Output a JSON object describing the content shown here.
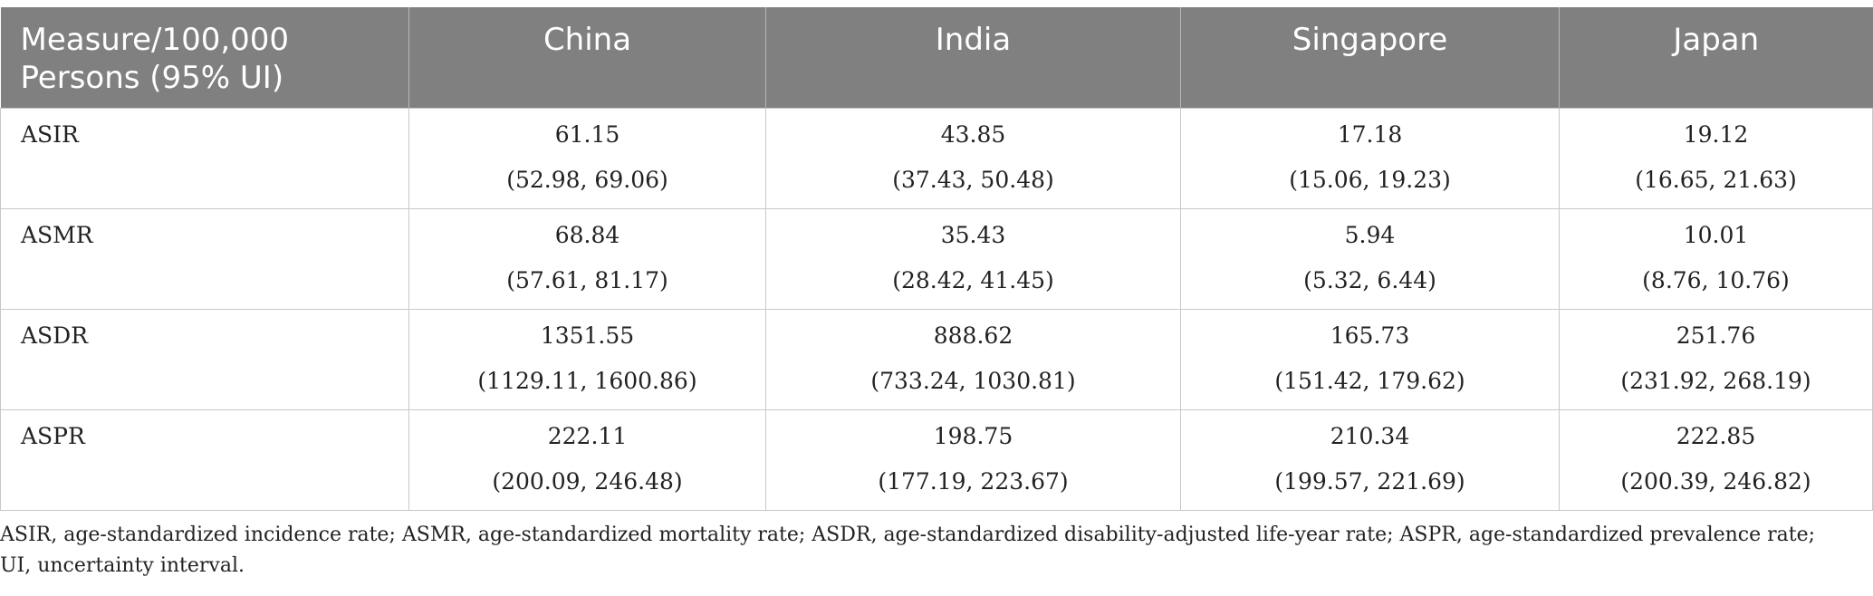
{
  "table": {
    "headers": [
      "Measure/100,000 Persons (95% UI)",
      "China",
      "India",
      "Singapore",
      "Japan"
    ],
    "rows": [
      {
        "measure": "ASIR",
        "cells": [
          {
            "value": "61.15",
            "ci": "(52.98, 69.06)"
          },
          {
            "value": "43.85",
            "ci": "(37.43, 50.48)"
          },
          {
            "value": "17.18",
            "ci": "(15.06, 19.23)"
          },
          {
            "value": "19.12",
            "ci": "(16.65, 21.63)"
          }
        ]
      },
      {
        "measure": "ASMR",
        "cells": [
          {
            "value": "68.84",
            "ci": "(57.61, 81.17)"
          },
          {
            "value": "35.43",
            "ci": "(28.42, 41.45)"
          },
          {
            "value": "5.94",
            "ci": "(5.32, 6.44)"
          },
          {
            "value": "10.01",
            "ci": "(8.76, 10.76)"
          }
        ]
      },
      {
        "measure": "ASDR",
        "cells": [
          {
            "value": "1351.55",
            "ci": "(1129.11, 1600.86)"
          },
          {
            "value": "888.62",
            "ci": "(733.24, 1030.81)"
          },
          {
            "value": "165.73",
            "ci": "(151.42, 179.62)"
          },
          {
            "value": "251.76",
            "ci": "(231.92, 268.19)"
          }
        ]
      },
      {
        "measure": "ASPR",
        "cells": [
          {
            "value": "222.11",
            "ci": "(200.09, 246.48)"
          },
          {
            "value": "198.75",
            "ci": "(177.19, 223.67)"
          },
          {
            "value": "210.34",
            "ci": "(199.57, 221.69)"
          },
          {
            "value": "222.85",
            "ci": "(200.39, 246.82)"
          }
        ]
      }
    ]
  },
  "footnote": "ASIR, age-standardized incidence rate; ASMR, age-standardized mortality rate; ASDR, age-standardized disability-adjusted life-year rate; ASPR, age-standardized prevalence rate; UI, uncertainty interval.",
  "colors": {
    "header_bg": "#808080",
    "header_text": "#ffffff",
    "border": "#c8c8c8",
    "text": "#222222"
  }
}
